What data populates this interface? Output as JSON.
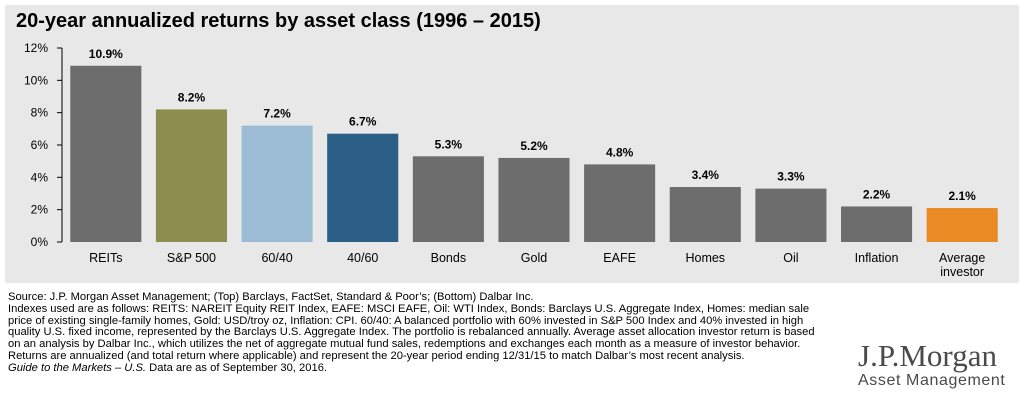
{
  "chart_data": {
    "type": "bar",
    "title": "20-year annualized returns by asset class (1996 – 2015)",
    "categories": [
      "REITs",
      "S&P 500",
      "60/40",
      "40/60",
      "Bonds",
      "Gold",
      "EAFE",
      "Homes",
      "Oil",
      "Inflation",
      "Average investor"
    ],
    "category_lines": [
      [
        "REITs"
      ],
      [
        "S&P 500"
      ],
      [
        "60/40"
      ],
      [
        "40/60"
      ],
      [
        "Bonds"
      ],
      [
        "Gold"
      ],
      [
        "EAFE"
      ],
      [
        "Homes"
      ],
      [
        "Oil"
      ],
      [
        "Inflation"
      ],
      [
        "Average",
        "investor"
      ]
    ],
    "values": [
      10.9,
      8.2,
      7.2,
      6.7,
      5.3,
      5.2,
      4.8,
      3.4,
      3.3,
      2.2,
      2.1
    ],
    "value_labels": [
      "10.9%",
      "8.2%",
      "7.2%",
      "6.7%",
      "5.3%",
      "5.2%",
      "4.8%",
      "3.4%",
      "3.3%",
      "2.2%",
      "2.1%"
    ],
    "colors": [
      "#6d6d6d",
      "#8c8c4e",
      "#9cbcd6",
      "#2b5f86",
      "#6d6d6d",
      "#6d6d6d",
      "#6d6d6d",
      "#6d6d6d",
      "#6d6d6d",
      "#6d6d6d",
      "#ea8a24"
    ],
    "yticks": [
      "0%",
      "2%",
      "4%",
      "6%",
      "8%",
      "10%",
      "12%"
    ],
    "ylim": [
      0,
      12
    ],
    "ytick_step": 2,
    "xlabel": "",
    "ylabel": "",
    "grid": false,
    "legend": "none"
  },
  "notes": {
    "source": "Source: J.P. Morgan Asset Management; (Top) Barclays, FactSet, Standard & Poor’s; (Bottom) Dalbar Inc.",
    "indexes": "Indexes used are as follows: REITS: NAREIT Equity REIT Index, EAFE: MSCI EAFE, Oil: WTI Index, Bonds: Barclays U.S. Aggregate Index, Homes: median sale price of existing single-family homes, Gold: USD/troy oz, Inflation: CPI. 60/40: A balanced portfolio with 60% invested in S&P 500 Index and 40% invested in high quality U.S. fixed income, represented by the Barclays U.S. Aggregate Index. The portfolio is rebalanced annually. Average asset allocation investor return is based on an analysis by Dalbar Inc., which utilizes the net of aggregate mutual fund sales, redemptions and exchanges each month as a measure of investor behavior. Returns are annualized (and total return where applicable) and represent the 20-year period ending 12/31/15 to match Dalbar’s most recent analysis.",
    "guide_italic": "Guide to the Markets – U.S.",
    "guide_rest": " Data are as of September 30, 2016."
  },
  "logo": {
    "brand": "J.P.Morgan",
    "sub": "Asset Management"
  }
}
